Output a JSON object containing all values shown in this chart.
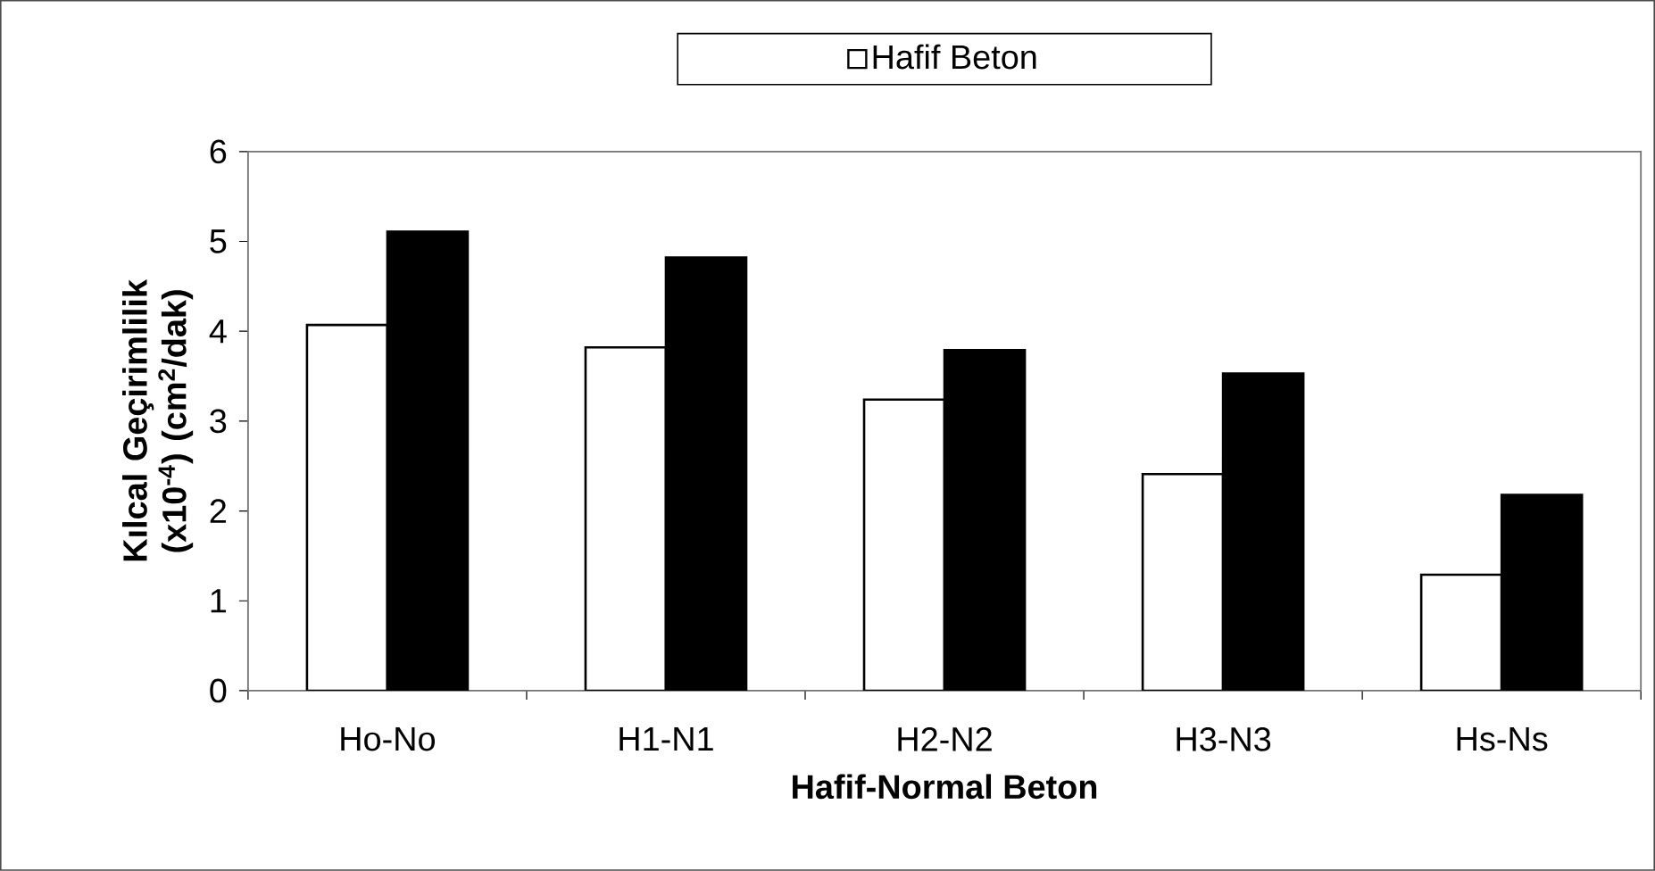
{
  "chart_data": {
    "type": "bar",
    "xlabel": "Hafif-Normal Beton",
    "ylabel": "Kılcal Geçirimlilik (x10$^{-4}$) (cm$^{2}$/dak)",
    "categories": [
      "Ho-No",
      "H1-N1",
      "H2-N2",
      "H3-N3",
      "Hs-Ns"
    ],
    "series": [
      {
        "name": "Hafif Beton",
        "color": "#ffffff",
        "values": [
          4.07,
          3.82,
          3.24,
          2.41,
          1.29
        ]
      },
      {
        "color": "#000000",
        "values": [
          5.11,
          4.82,
          3.79,
          3.53,
          2.18
        ]
      }
    ],
    "ylim": [
      0,
      6
    ],
    "yticks": [
      0,
      1,
      2,
      3,
      4,
      5,
      6
    ],
    "grid": false,
    "legend": "top"
  }
}
